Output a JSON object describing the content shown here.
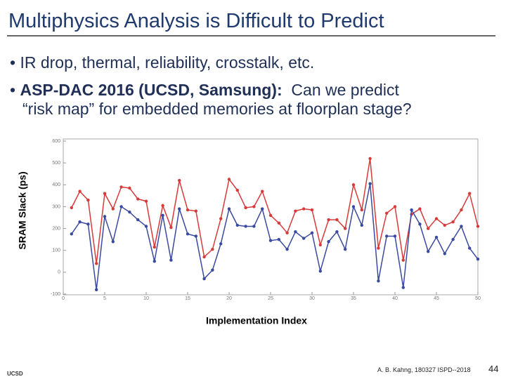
{
  "slide": {
    "title": "Multiphysics Analysis is Difficult to Predict",
    "bullets": [
      {
        "text": "IR drop, thermal, reliability, crosstalk, etc."
      },
      {
        "bold": "ASP-DAC 2016 (UCSD, Samsung):",
        "lines": [
          "Can we predict",
          "“risk map” for embedded memories at floorplan stage?"
        ]
      }
    ],
    "logo": "UCSD",
    "footer": "A. B. Kahng, 180327 ISPD--2018",
    "page_number": "44"
  },
  "chart_data": {
    "type": "line",
    "x_label": "Implementation Index",
    "y_label": "SRAM Slack (ps)",
    "x": [
      1,
      2,
      3,
      4,
      5,
      6,
      7,
      8,
      9,
      10,
      11,
      12,
      13,
      14,
      15,
      16,
      17,
      18,
      19,
      20,
      21,
      22,
      23,
      24,
      25,
      26,
      27,
      28,
      29,
      30,
      31,
      32,
      33,
      34,
      35,
      36,
      37,
      38,
      39,
      40,
      41,
      42,
      43,
      44,
      45,
      46,
      47,
      48,
      49,
      50
    ],
    "series": [
      {
        "color": "#d83a3a",
        "values": [
          295,
          370,
          330,
          40,
          360,
          290,
          390,
          385,
          335,
          325,
          115,
          305,
          205,
          420,
          285,
          280,
          70,
          105,
          245,
          425,
          375,
          295,
          300,
          370,
          260,
          225,
          180,
          280,
          290,
          285,
          125,
          240,
          240,
          200,
          400,
          285,
          520,
          110,
          270,
          300,
          55,
          265,
          290,
          200,
          245,
          215,
          230,
          285,
          360,
          210
        ]
      },
      {
        "color": "#3a4aa0",
        "values": [
          175,
          230,
          220,
          -80,
          255,
          140,
          300,
          275,
          240,
          210,
          50,
          260,
          55,
          290,
          175,
          165,
          -30,
          10,
          130,
          290,
          215,
          210,
          210,
          290,
          145,
          150,
          105,
          185,
          155,
          180,
          5,
          140,
          185,
          105,
          300,
          215,
          405,
          -40,
          165,
          165,
          -70,
          285,
          220,
          95,
          160,
          85,
          150,
          210,
          110,
          60
        ]
      }
    ],
    "xlim": [
      0,
      50
    ],
    "xticks": [
      0,
      5,
      10,
      15,
      20,
      25,
      30,
      35,
      40,
      45,
      50
    ],
    "ylim": [
      -100,
      600
    ],
    "yticks": [
      -100,
      0,
      100,
      200,
      300,
      400,
      500,
      600
    ]
  }
}
